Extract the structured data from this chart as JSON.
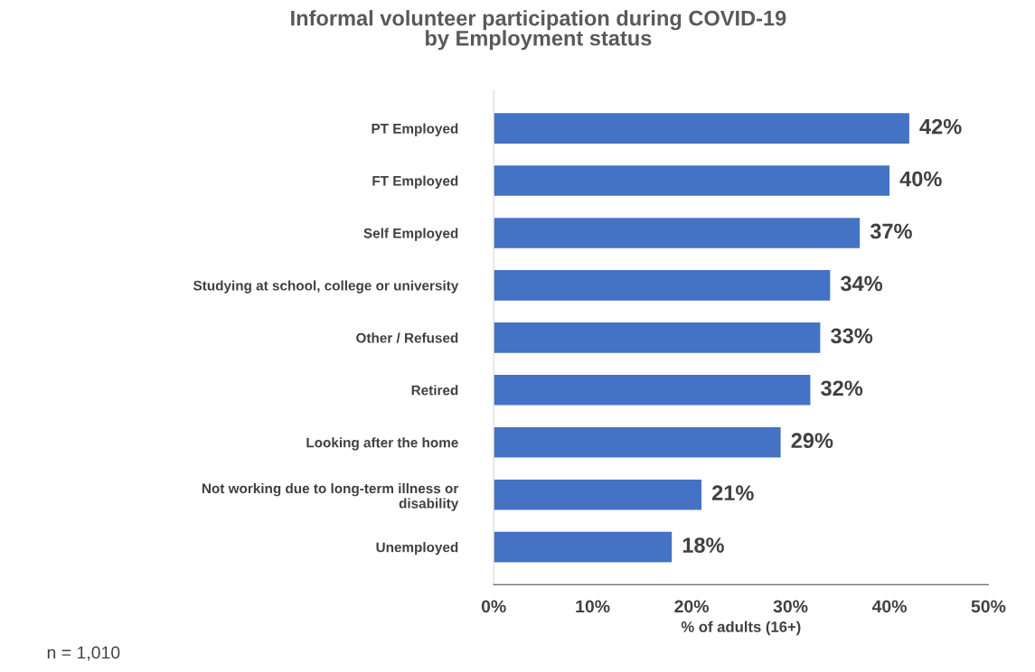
{
  "chart_data": {
    "type": "bar",
    "orientation": "horizontal",
    "title": "Informal volunteer participation during COVID-19\nby Employment status",
    "xlabel": "% of adults (16+)",
    "categories": [
      "PT Employed",
      "FT Employed",
      "Self Employed",
      "Studying at school, college or university",
      "Other / Refused",
      "Retired",
      "Looking after the home",
      "Not working due to long-term illness or\ndisability",
      "Unemployed"
    ],
    "values": [
      42,
      40,
      37,
      34,
      33,
      32,
      29,
      21,
      18
    ],
    "value_labels": [
      "42%",
      "40%",
      "37%",
      "34%",
      "33%",
      "32%",
      "29%",
      "21%",
      "18%"
    ],
    "color": "#4472c4",
    "xlim": [
      0,
      50
    ],
    "xticks": [
      {
        "value": 0,
        "label": "0%"
      },
      {
        "value": 10,
        "label": "10%"
      },
      {
        "value": 20,
        "label": "20%"
      },
      {
        "value": 30,
        "label": "30%"
      },
      {
        "value": 40,
        "label": "40%"
      },
      {
        "value": 50,
        "label": "50%"
      }
    ],
    "annotations": [
      "n = 1,010"
    ]
  }
}
